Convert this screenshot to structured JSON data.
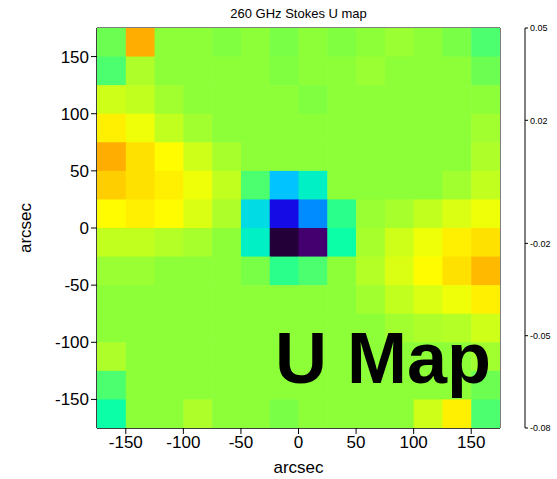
{
  "chart_data": {
    "type": "heatmap",
    "title": "260 GHz Stokes U map",
    "x_label": "arcsec",
    "y_label": "arcsec",
    "annotation": "U Map",
    "x": [
      -162.5,
      -137.5,
      -112.5,
      -87.5,
      -62.5,
      -37.5,
      -12.5,
      12.5,
      37.5,
      62.5,
      87.5,
      112.5,
      137.5,
      162.5
    ],
    "y": [
      162.5,
      137.5,
      112.5,
      87.5,
      62.5,
      37.5,
      12.5,
      -12.5,
      -37.5,
      -62.5,
      -87.5,
      -112.5,
      -137.5,
      -162.5
    ],
    "values": [
      [
        -0.005,
        0.03,
        0,
        0,
        -0.002,
        0,
        -0.003,
        0,
        -0.002,
        0,
        0.002,
        0,
        -0.003,
        -0.01
      ],
      [
        -0.01,
        0.005,
        0,
        0,
        0,
        0,
        -0.002,
        0,
        0,
        0.002,
        0,
        0,
        0,
        -0.005
      ],
      [
        0.01,
        0.008,
        0.003,
        0,
        0,
        0,
        0,
        -0.002,
        0,
        0,
        0,
        0,
        0,
        0
      ],
      [
        0.02,
        0.015,
        0.008,
        0.003,
        0,
        0,
        0,
        0,
        0,
        0,
        0,
        0,
        0,
        0.003
      ],
      [
        0.03,
        0.022,
        0.018,
        0.01,
        0.004,
        0,
        0,
        0,
        0,
        0,
        0,
        0,
        0,
        0.005
      ],
      [
        0.025,
        0.022,
        0.02,
        0.015,
        0.008,
        -0.01,
        -0.035,
        -0.025,
        0,
        0,
        0,
        0,
        0.003,
        0.008
      ],
      [
        0.018,
        0.02,
        0.018,
        0.012,
        0.005,
        -0.03,
        -0.055,
        -0.04,
        -0.015,
        0.002,
        0.004,
        0.008,
        0.012,
        0.015
      ],
      [
        0.008,
        0.008,
        0.006,
        0.004,
        0,
        -0.025,
        -0.075,
        -0.07,
        -0.02,
        0.004,
        0.01,
        0.015,
        0.02,
        0.022
      ],
      [
        0.002,
        0.002,
        0,
        0,
        0,
        -0.003,
        -0.015,
        -0.01,
        0,
        0.006,
        0.012,
        0.018,
        0.022,
        0.028
      ],
      [
        0,
        0,
        0,
        0,
        0,
        0,
        0,
        0,
        0,
        0.003,
        0.008,
        0.012,
        0.015,
        0.02
      ],
      [
        0,
        0,
        0,
        0,
        0,
        0,
        0,
        0,
        0,
        0,
        0.003,
        0.005,
        0.006,
        0.01
      ],
      [
        0.005,
        0,
        0,
        0,
        0,
        0,
        0,
        0,
        0,
        0,
        0,
        0,
        0,
        0.003
      ],
      [
        -0.01,
        0,
        0,
        0,
        0,
        0,
        0,
        0,
        0,
        0,
        0,
        0,
        0,
        -0.005
      ],
      [
        -0.02,
        0,
        0,
        0.005,
        0,
        0,
        -0.003,
        0,
        0,
        0,
        0,
        0.01,
        0.02,
        -0.01
      ]
    ],
    "xlim": [
      -175,
      175
    ],
    "ylim": [
      -175,
      175
    ],
    "xticks": [
      -150,
      -100,
      -50,
      0,
      50,
      100,
      150
    ],
    "yticks": [
      -150,
      -100,
      -50,
      0,
      50,
      100,
      150
    ],
    "colorbar": {
      "range": [
        -0.08,
        0.05
      ],
      "ticks": [
        -0.08,
        -0.05,
        -0.02,
        0.02,
        0.05
      ]
    }
  }
}
